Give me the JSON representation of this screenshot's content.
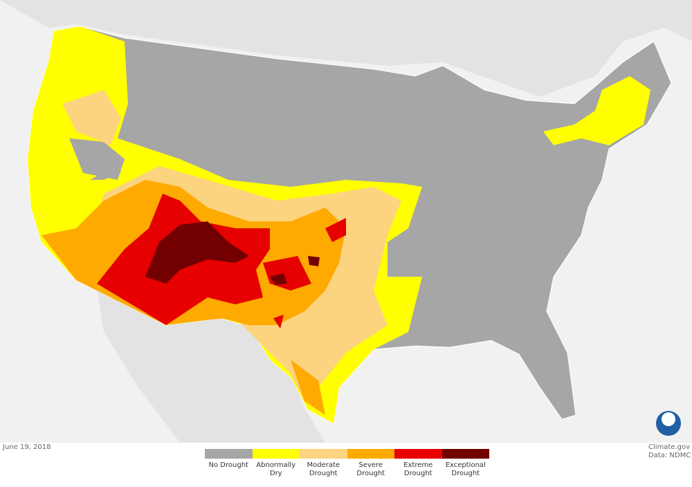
{
  "date": "June 19, 2018",
  "credit": {
    "source": "Climate.gov",
    "data": "Data: NDMC"
  },
  "legend": {
    "items": [
      {
        "label": "No Drought",
        "color": "#a6a6a6"
      },
      {
        "label": "Abnormally Dry",
        "color": "#ffff00"
      },
      {
        "label": "Moderate Drought",
        "color": "#fcd37f"
      },
      {
        "label": "Severe Drought",
        "color": "#ffaa00"
      },
      {
        "label": "Extreme Drought",
        "color": "#e60000"
      },
      {
        "label": "Exceptional Drought",
        "color": "#730000"
      }
    ]
  }
}
